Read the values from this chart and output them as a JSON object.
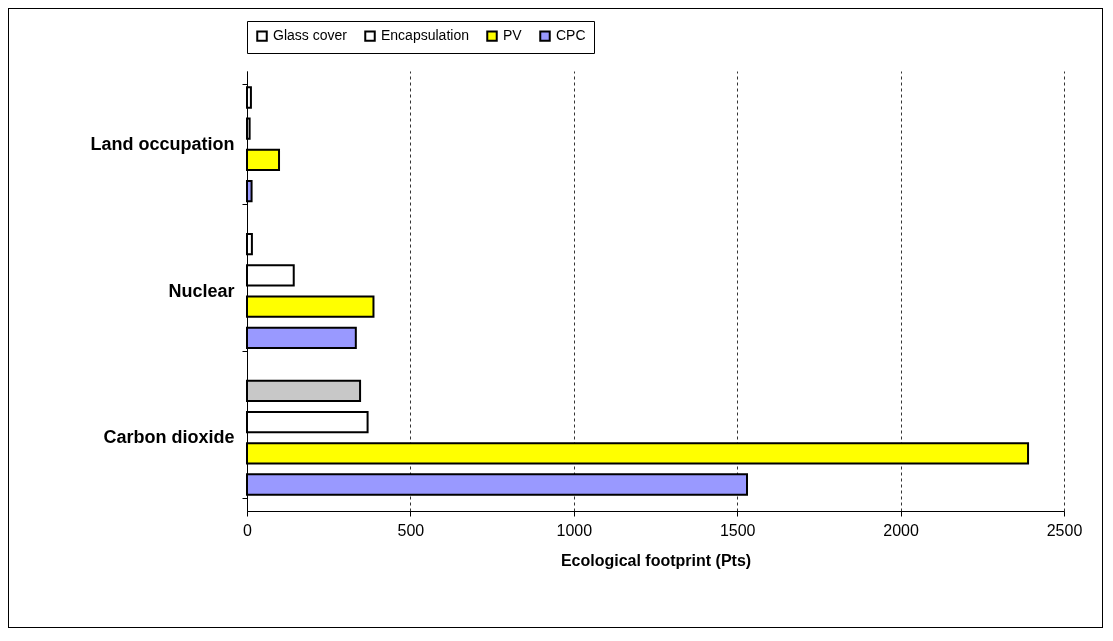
{
  "chart_data": {
    "type": "bar",
    "orientation": "horizontal",
    "xlabel": "Ecological  footprint (Pts)",
    "categories": [
      "Land occupation",
      "Nuclear",
      "Carbon dioxide"
    ],
    "series": [
      {
        "name": "Glass cover",
        "color": "#ffffff",
        "colors": [
          "#ffffff",
          "#ffffff",
          "#c8c8c8"
        ],
        "values": [
          12,
          15,
          346
        ]
      },
      {
        "name": "Encapsulation",
        "color": "#ffffff",
        "values": [
          8,
          143,
          369
        ]
      },
      {
        "name": "PV",
        "color": "#ffff00",
        "values": [
          98,
          387,
          2390
        ]
      },
      {
        "name": "CPC",
        "color": "#9999ff",
        "values": [
          14,
          333,
          1530
        ]
      }
    ],
    "xlim": [
      0,
      2500
    ],
    "xticks": [
      0,
      500,
      1000,
      1500,
      2000,
      2500
    ],
    "grid": "x",
    "legend": "top"
  }
}
